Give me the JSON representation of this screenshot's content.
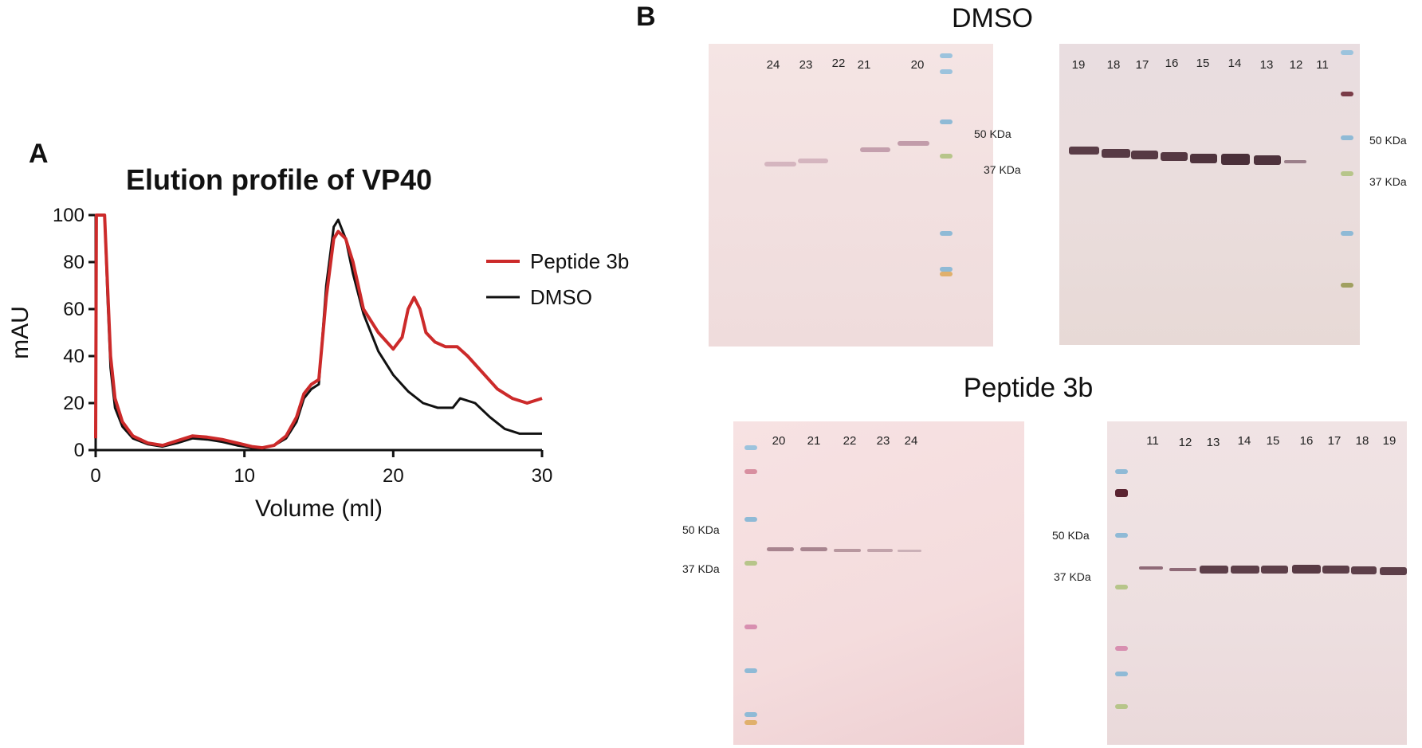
{
  "panel_a": {
    "label": "A",
    "chart_data": {
      "type": "line",
      "title": "Elution profile of VP40",
      "xlabel": "Volume (ml)",
      "ylabel": "mAU",
      "xlim": [
        0,
        30
      ],
      "ylim": [
        0,
        100
      ],
      "xticks": [
        "0",
        "10",
        "20",
        "30"
      ],
      "yticks": [
        "0",
        "20",
        "40",
        "60",
        "80",
        "100"
      ],
      "legend_position": "right",
      "series": [
        {
          "name": "Peptide 3b",
          "color": "#cc2a2a",
          "x": [
            0,
            0.05,
            0.1,
            0.6,
            0.8,
            1.0,
            1.3,
            1.8,
            2.5,
            3.5,
            4.5,
            5.5,
            6.5,
            7.5,
            8.5,
            9.5,
            10.5,
            11.2,
            12.0,
            12.8,
            13.5,
            14.0,
            14.5,
            15.0,
            15.5,
            16.0,
            16.3,
            16.8,
            17.3,
            18.0,
            19.0,
            20.0,
            20.6,
            21.0,
            21.4,
            21.8,
            22.2,
            22.8,
            23.5,
            24.3,
            25.0,
            26.0,
            27.0,
            28.0,
            29.0,
            30.0
          ],
          "y": [
            5,
            100,
            100,
            100,
            70,
            40,
            22,
            12,
            6,
            3,
            2,
            4,
            6,
            5.5,
            4.5,
            3,
            1.5,
            1,
            2,
            6,
            14,
            24,
            28,
            30,
            65,
            90,
            93,
            90,
            80,
            60,
            50,
            43,
            48,
            60,
            65,
            60,
            50,
            46,
            44,
            44,
            40,
            33,
            26,
            22,
            20,
            22
          ]
        },
        {
          "name": "DMSO",
          "color": "#111111",
          "x": [
            0,
            0.05,
            0.1,
            0.6,
            0.8,
            1.0,
            1.3,
            1.8,
            2.5,
            3.5,
            4.5,
            5.5,
            6.5,
            7.5,
            8.5,
            9.5,
            10.5,
            11.2,
            12.0,
            12.8,
            13.5,
            14.0,
            14.5,
            15.0,
            15.5,
            16.0,
            16.3,
            16.8,
            17.3,
            18.0,
            19.0,
            20.0,
            21.0,
            22.0,
            23.0,
            24.0,
            24.5,
            25.5,
            26.5,
            27.5,
            28.5,
            30.0
          ],
          "y": [
            5,
            100,
            100,
            100,
            65,
            35,
            18,
            10,
            5,
            2.5,
            1.5,
            3,
            5,
            4.5,
            3.5,
            2,
            1,
            1,
            2,
            5,
            12,
            22,
            26,
            28,
            70,
            95,
            98,
            90,
            75,
            58,
            42,
            32,
            25,
            20,
            18,
            18,
            22,
            20,
            14,
            9,
            7,
            7
          ]
        }
      ]
    }
  },
  "panel_b": {
    "label": "B",
    "groups": [
      {
        "heading": "DMSO"
      },
      {
        "heading": "Peptide 3b"
      }
    ],
    "blots": [
      {
        "lanes": [
          "24",
          "23",
          "22",
          "21",
          "20"
        ],
        "markers": [
          "50 KDa",
          "37 KDa"
        ]
      },
      {
        "lanes": [
          "19",
          "18",
          "17",
          "16",
          "15",
          "14",
          "13",
          "12",
          "11"
        ],
        "markers": [
          "50 KDa",
          "37 KDa"
        ]
      },
      {
        "lanes": [
          "20",
          "21",
          "22",
          "23",
          "24"
        ],
        "markers": [
          "50 KDa",
          "37 KDa"
        ]
      },
      {
        "lanes": [
          "11",
          "12",
          "13",
          "14",
          "15",
          "16",
          "17",
          "18",
          "19"
        ],
        "markers": [
          "50 KDa",
          "37 KDa"
        ]
      }
    ]
  }
}
